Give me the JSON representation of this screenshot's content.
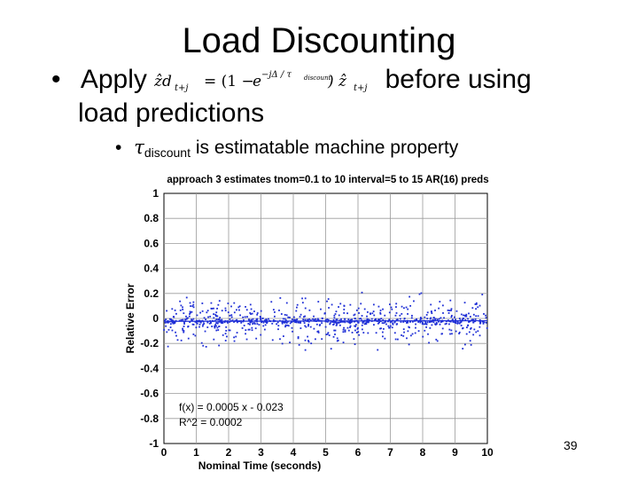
{
  "slide": {
    "title": "Load Discounting",
    "bullet1_marker": "•",
    "bullet1_lead": "Apply",
    "bullet1_tail": "before using",
    "bullet1_line2": "load predictions",
    "bullet2_marker": "•",
    "bullet2_tau": "τ",
    "bullet2_sub": "discount",
    "bullet2_text": "is estimatable machine property",
    "page_number": "39"
  },
  "formula": {
    "lhs": "ẑd",
    "lhs_sub": "t+j",
    "eq": "= (1 −",
    "e": "e",
    "exponent": "−jΔ / τ",
    "exponent_sub": "discount",
    "rhs": ") ẑ",
    "rhs_sub": "t+j"
  },
  "chart_data": {
    "type": "scatter",
    "title": "approach 3 estimates  tnom=0.1 to 10 interval=5 to 15 AR(16) preds",
    "xlabel": "Nominal Time (seconds)",
    "ylabel": "Relative Error",
    "xlim": [
      0,
      10
    ],
    "ylim": [
      -1,
      1
    ],
    "xticks": [
      "0",
      "1",
      "2",
      "3",
      "4",
      "5",
      "6",
      "7",
      "8",
      "9",
      "10"
    ],
    "yticks": [
      "1",
      "0.8",
      "0.6",
      "0.4",
      "0.2",
      "0",
      "-0.2",
      "-0.4",
      "-0.6",
      "-0.8",
      "-1"
    ],
    "grid": true,
    "fit": {
      "slope": 0.0005,
      "intercept": -0.023
    },
    "annotations": [
      "f(x) = 0.0005 x - 0.023",
      "R^2 = 0.0002"
    ],
    "points_note_count": 900,
    "colors": {
      "points": "#1f2fd6",
      "grid": "#9a9a9a",
      "fit_line": "#1f2fd6"
    }
  }
}
